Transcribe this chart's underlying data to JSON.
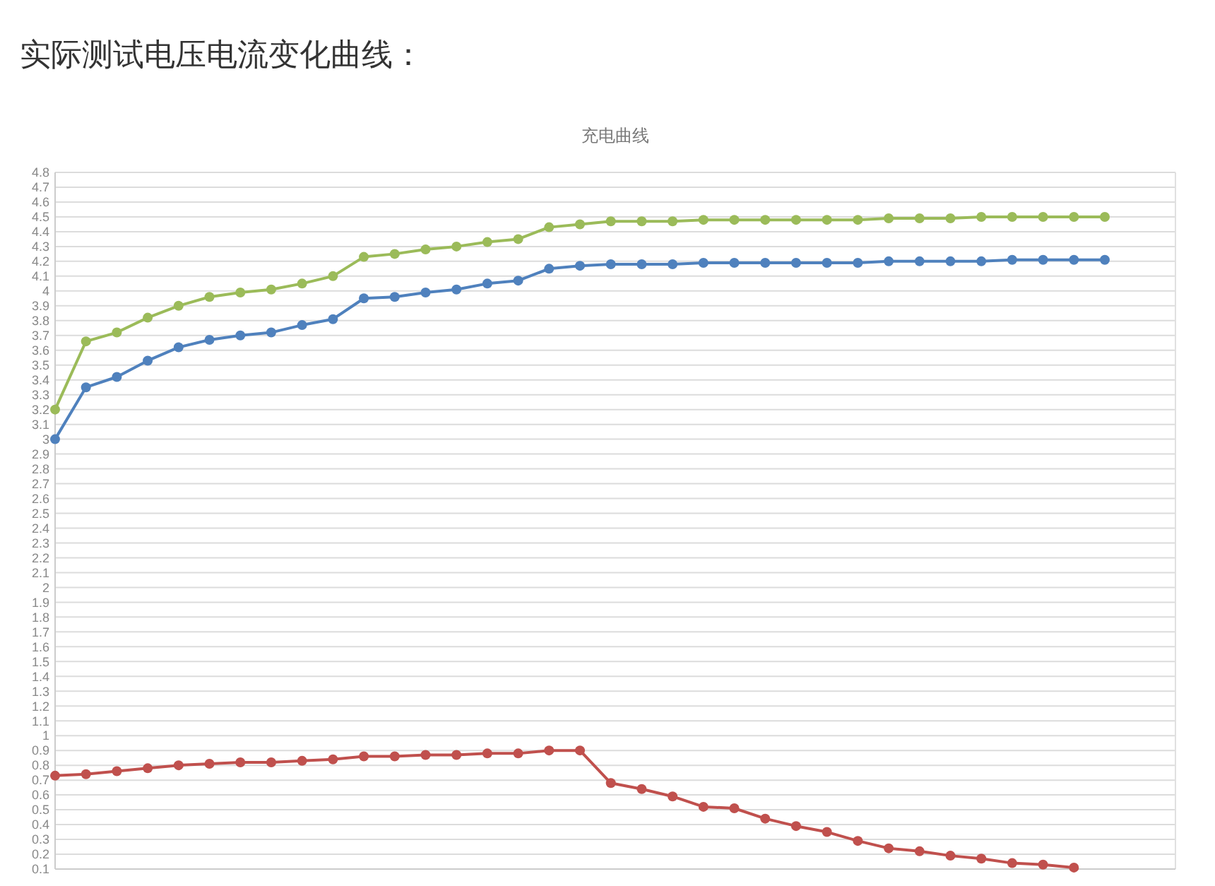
{
  "chart_data": {
    "type": "line",
    "title": "实际测试电压电流变化曲线：",
    "subtitle": "充电曲线",
    "categories": [
      null,
      null,
      null,
      null,
      null,
      null,
      null,
      null,
      null,
      null,
      null,
      null,
      null,
      null,
      null,
      null,
      null,
      null,
      null,
      null,
      null,
      null,
      null,
      null,
      null,
      null,
      null,
      null,
      null,
      null,
      null,
      null,
      null,
      null,
      null
    ],
    "ylim": [
      0.1,
      4.8
    ],
    "yticks": [
      0.1,
      0.2,
      0.3,
      0.4,
      0.5,
      0.6,
      0.7,
      0.8,
      0.9,
      1,
      1.1,
      1.2,
      1.3,
      1.4,
      1.5,
      1.6,
      1.7,
      1.8,
      1.9,
      2,
      2.1,
      2.2,
      2.3,
      2.4,
      2.5,
      2.6,
      2.7,
      2.8,
      2.9,
      3,
      3.1,
      3.2,
      3.3,
      3.4,
      3.5,
      3.6,
      3.7,
      3.8,
      3.9,
      4,
      4.1,
      4.2,
      4.3,
      4.4,
      4.5,
      4.6,
      4.7,
      4.8
    ],
    "grid": "y",
    "marker": "circle",
    "line_style": "solid",
    "series": [
      {
        "color": "#9bbb59",
        "values": [
          3.2,
          3.66,
          3.72,
          3.82,
          3.9,
          3.96,
          3.99,
          4.01,
          4.05,
          4.1,
          4.23,
          4.25,
          4.28,
          4.3,
          4.33,
          4.35,
          4.43,
          4.45,
          4.47,
          4.47,
          4.47,
          4.48,
          4.48,
          4.48,
          4.48,
          4.48,
          4.48,
          4.49,
          4.49,
          4.49,
          4.5,
          4.5,
          4.5,
          4.5,
          4.5
        ]
      },
      {
        "color": "#4f81bd",
        "values": [
          3,
          3.35,
          3.42,
          3.53,
          3.62,
          3.67,
          3.7,
          3.72,
          3.77,
          3.81,
          3.95,
          3.96,
          3.99,
          4.01,
          4.05,
          4.07,
          4.15,
          4.17,
          4.18,
          4.18,
          4.18,
          4.19,
          4.19,
          4.19,
          4.19,
          4.19,
          4.19,
          4.2,
          4.2,
          4.2,
          4.2,
          4.21,
          4.21,
          4.21,
          4.21
        ]
      },
      {
        "color": "#c0504d",
        "values": [
          0.73,
          0.74,
          0.76,
          0.78,
          0.8,
          0.81,
          0.82,
          0.82,
          0.83,
          0.84,
          0.86,
          0.86,
          0.87,
          0.87,
          0.88,
          0.88,
          0.9,
          0.9,
          0.68,
          0.64,
          0.59,
          0.52,
          0.51,
          0.44,
          0.39,
          0.35,
          0.29,
          0.24,
          0.22,
          0.19,
          0.17,
          0.14,
          0.13,
          0.11,
          null
        ]
      }
    ]
  }
}
